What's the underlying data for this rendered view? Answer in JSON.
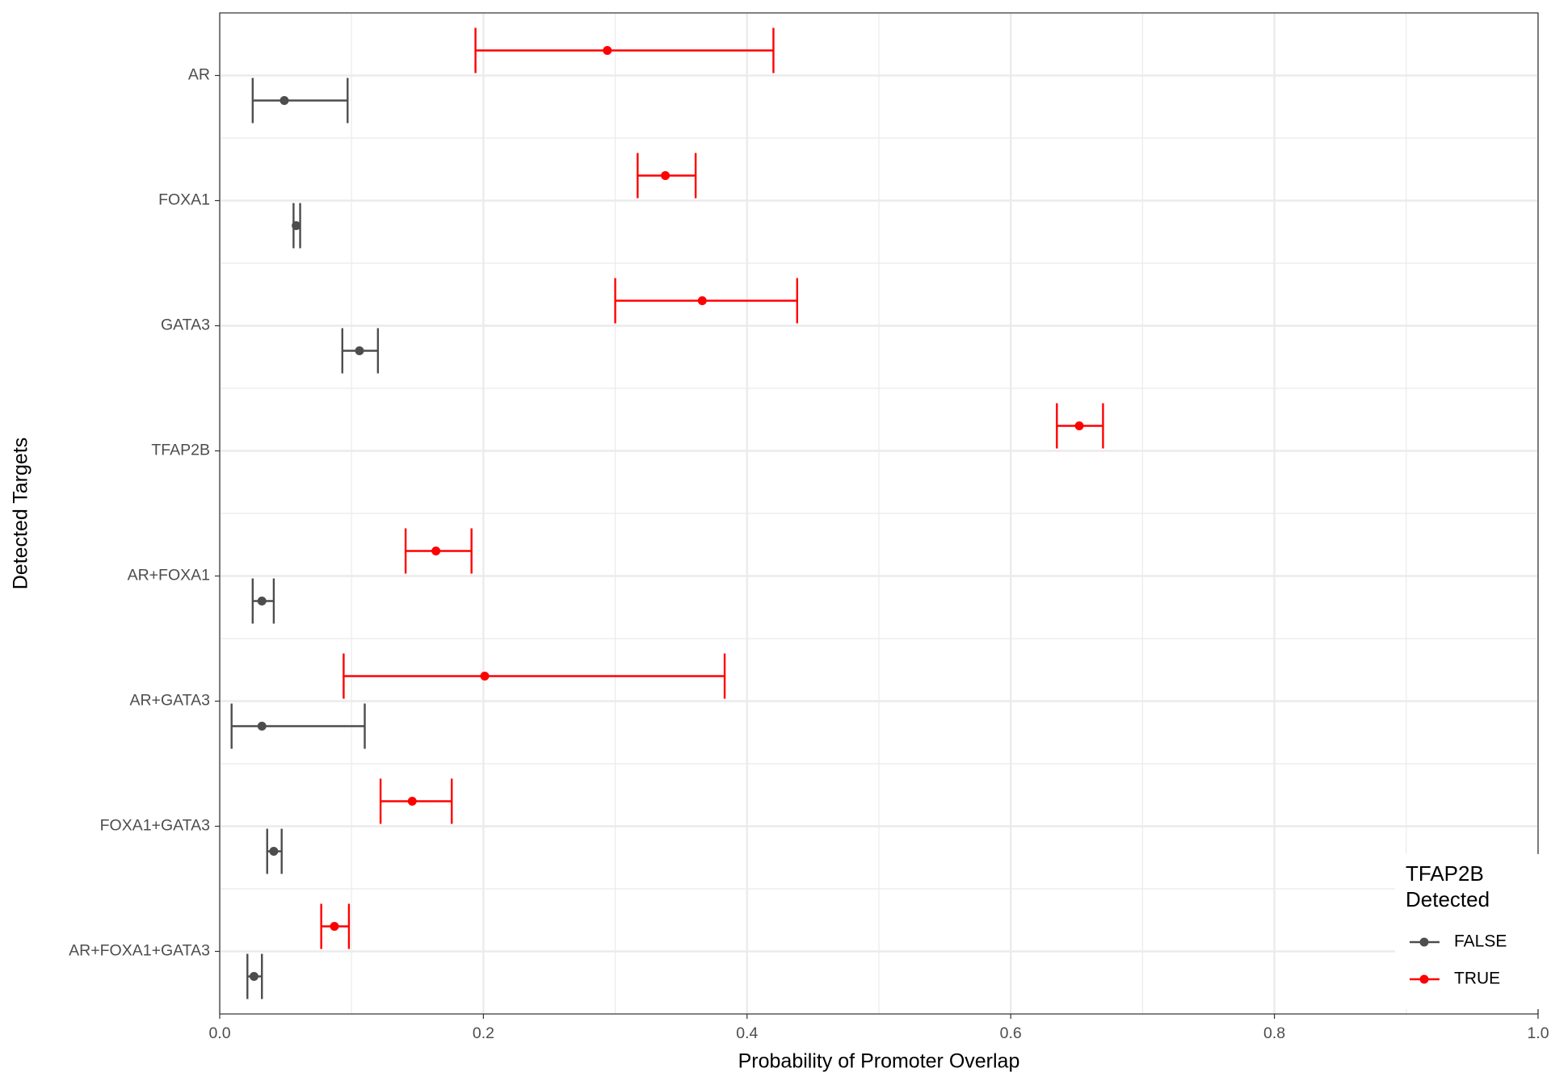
{
  "chart_data": {
    "type": "dot-errorbar",
    "x_label": "Probability of Promoter Overlap",
    "y_label": "Detected Targets",
    "legend_title": "TFAP2B Detected",
    "legend_position": "bottom-right",
    "categories": [
      "AR",
      "FOXA1",
      "GATA3",
      "TFAP2B",
      "AR+FOXA1",
      "AR+GATA3",
      "FOXA1+GATA3",
      "AR+FOXA1+GATA3"
    ],
    "series": [
      {
        "name": "FALSE",
        "color": "#4d4d4d",
        "values": [
          0.049,
          0.058,
          0.106,
          null,
          0.032,
          0.032,
          0.041,
          0.026
        ],
        "lower": [
          0.025,
          0.056,
          0.093,
          null,
          0.025,
          0.009,
          0.036,
          0.021
        ],
        "upper": [
          0.097,
          0.061,
          0.12,
          null,
          0.041,
          0.11,
          0.047,
          0.032
        ]
      },
      {
        "name": "TRUE",
        "color": "#ff0000",
        "values": [
          0.294,
          0.338,
          0.366,
          0.652,
          0.164,
          0.201,
          0.146,
          0.087
        ],
        "lower": [
          0.194,
          0.317,
          0.3,
          0.635,
          0.141,
          0.094,
          0.122,
          0.077
        ],
        "upper": [
          0.42,
          0.361,
          0.438,
          0.67,
          0.191,
          0.383,
          0.176,
          0.098
        ]
      }
    ],
    "xlim": [
      0,
      1
    ],
    "xticks": [
      {
        "value": 0,
        "label": "0.0"
      },
      0.2,
      0.4,
      0.6,
      0.8,
      {
        "value": 1,
        "label": "1.0"
      }
    ],
    "grid": true
  }
}
